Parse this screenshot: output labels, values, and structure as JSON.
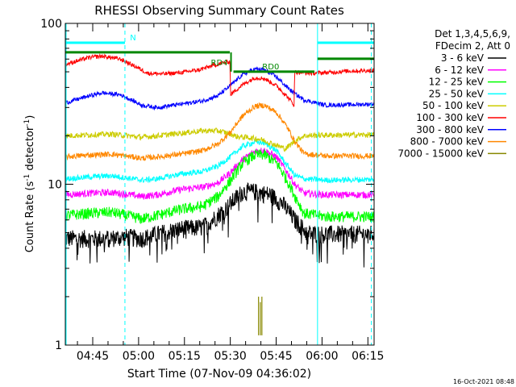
{
  "chart_data": {
    "type": "line",
    "title": "RHESSI Observing Summary Count Rates",
    "xlabel": "Start Time (07-Nov-09 04:36:02)",
    "ylabel_main": "Count Rate (s",
    "ylabel_sup": "-1",
    "ylabel_tail": " detector",
    "ylabel_end": ")",
    "y_scale": "log",
    "ylim": [
      1,
      100
    ],
    "xlim": [
      "04:36:02",
      "06:17:00"
    ],
    "y_ticks": [
      {
        "value": 1,
        "label": "1"
      },
      {
        "value": 10,
        "label": "10"
      },
      {
        "value": 100,
        "label": "100"
      }
    ],
    "x_ticks": [
      {
        "minutes": 8.97,
        "label": "04:45"
      },
      {
        "minutes": 23.97,
        "label": "05:00"
      },
      {
        "minutes": 38.97,
        "label": "05:15"
      },
      {
        "minutes": 53.97,
        "label": "05:30"
      },
      {
        "minutes": 68.97,
        "label": "05:45"
      },
      {
        "minutes": 83.97,
        "label": "06:00"
      },
      {
        "minutes": 98.97,
        "label": "06:15"
      }
    ],
    "legend": {
      "placement": "right",
      "header": [
        "Det 1,3,4,5,6,9,",
        "FDecim 2, Att 0"
      ],
      "entries": [
        {
          "label": "3 - 6 keV",
          "color": "#000000"
        },
        {
          "label": "6 - 12 keV",
          "color": "#ff00ff"
        },
        {
          "label": "12 - 25 keV",
          "color": "#00ff00"
        },
        {
          "label": "25 - 50 keV",
          "color": "#00ffff"
        },
        {
          "label": "50 - 100 keV",
          "color": "#cccc00"
        },
        {
          "label": "100 - 300 keV",
          "color": "#ff0000"
        },
        {
          "label": "300 - 800 keV",
          "color": "#0000ff"
        },
        {
          "label": "800 - 7000 keV",
          "color": "#ff8800"
        },
        {
          "label": "7000 - 15000 keV",
          "color": "#888800"
        }
      ]
    },
    "series": [
      {
        "name": "3 - 6 keV",
        "color": "#000000",
        "noise": 0.13,
        "points": [
          [
            0,
            4.6
          ],
          [
            12,
            4.6
          ],
          [
            20,
            4.7
          ],
          [
            25,
            4.6
          ],
          [
            30,
            4.9
          ],
          [
            38,
            5.3
          ],
          [
            45,
            5.4
          ],
          [
            49,
            6.2
          ],
          [
            53,
            7.2
          ],
          [
            58,
            9.0
          ],
          [
            62,
            9.0
          ],
          [
            67,
            8.6
          ],
          [
            71,
            7.6
          ],
          [
            75,
            6.0
          ],
          [
            79,
            5.0
          ],
          [
            84,
            4.9
          ],
          [
            92,
            4.9
          ],
          [
            101,
            4.9
          ]
        ]
      },
      {
        "name": "6 - 12 keV",
        "color": "#ff00ff",
        "noise": 0.05,
        "points": [
          [
            0,
            8.6
          ],
          [
            8,
            8.8
          ],
          [
            15,
            8.9
          ],
          [
            25,
            8.4
          ],
          [
            30,
            8.6
          ],
          [
            38,
            9.3
          ],
          [
            45,
            9.6
          ],
          [
            50,
            10.2
          ],
          [
            54,
            11.8
          ],
          [
            58,
            14.2
          ],
          [
            62,
            16.0
          ],
          [
            65,
            16.3
          ],
          [
            69,
            14.8
          ],
          [
            72,
            12.3
          ],
          [
            75,
            10.0
          ],
          [
            78,
            8.8
          ],
          [
            85,
            8.6
          ],
          [
            101,
            8.6
          ]
        ]
      },
      {
        "name": "12 - 25 keV",
        "color": "#00ff00",
        "noise": 0.08,
        "points": [
          [
            0,
            6.4
          ],
          [
            8,
            6.6
          ],
          [
            15,
            6.7
          ],
          [
            25,
            6.1
          ],
          [
            30,
            6.4
          ],
          [
            38,
            7.0
          ],
          [
            45,
            7.3
          ],
          [
            50,
            8.4
          ],
          [
            54,
            10.5
          ],
          [
            58,
            13.5
          ],
          [
            62,
            15.2
          ],
          [
            65,
            15.3
          ],
          [
            69,
            13.6
          ],
          [
            72,
            11.0
          ],
          [
            75,
            8.5
          ],
          [
            78,
            6.6
          ],
          [
            85,
            6.3
          ],
          [
            101,
            6.3
          ]
        ]
      },
      {
        "name": "25 - 50 keV",
        "color": "#00ffff",
        "noise": 0.04,
        "points": [
          [
            0,
            10.8
          ],
          [
            8,
            11.1
          ],
          [
            15,
            11.3
          ],
          [
            25,
            10.6
          ],
          [
            30,
            10.8
          ],
          [
            38,
            11.6
          ],
          [
            45,
            12.0
          ],
          [
            50,
            13.0
          ],
          [
            54,
            14.8
          ],
          [
            58,
            17.2
          ],
          [
            62,
            18.3
          ],
          [
            65,
            18.1
          ],
          [
            69,
            16.2
          ],
          [
            72,
            13.5
          ],
          [
            75,
            11.4
          ],
          [
            78,
            10.8
          ],
          [
            85,
            10.6
          ],
          [
            101,
            10.7
          ]
        ]
      },
      {
        "name": "50 - 100 keV",
        "color": "#cccc00",
        "noise": 0.04,
        "points": [
          [
            0,
            20.0
          ],
          [
            8,
            20.3
          ],
          [
            15,
            20.5
          ],
          [
            25,
            19.6
          ],
          [
            30,
            20.0
          ],
          [
            38,
            20.8
          ],
          [
            45,
            21.5
          ],
          [
            50,
            21.5
          ],
          [
            54,
            20.6
          ],
          [
            56,
            19.8
          ],
          [
            60,
            19.5
          ],
          [
            64,
            19.0
          ],
          [
            69,
            17.5
          ],
          [
            72,
            16.6
          ],
          [
            75,
            18.5
          ],
          [
            78,
            20.0
          ],
          [
            85,
            20.2
          ],
          [
            101,
            20.3
          ]
        ]
      },
      {
        "name": "800 - 7000 keV",
        "color": "#ff8800",
        "noise": 0.04,
        "points": [
          [
            0,
            14.8
          ],
          [
            8,
            15.2
          ],
          [
            15,
            15.4
          ],
          [
            25,
            14.5
          ],
          [
            30,
            14.8
          ],
          [
            38,
            15.4
          ],
          [
            45,
            16.2
          ],
          [
            50,
            17.8
          ],
          [
            54,
            21.0
          ],
          [
            58,
            26.5
          ],
          [
            62,
            30.5
          ],
          [
            65,
            31.0
          ],
          [
            69,
            28.0
          ],
          [
            72,
            23.5
          ],
          [
            75,
            18.5
          ],
          [
            78,
            15.5
          ],
          [
            85,
            15.0
          ],
          [
            101,
            15.0
          ]
        ]
      },
      {
        "name": "300 - 800 keV",
        "color": "#0000ff",
        "noise": 0.03,
        "points": [
          [
            0,
            32.0
          ],
          [
            8,
            35.5
          ],
          [
            12,
            37.0
          ],
          [
            18,
            36.0
          ],
          [
            25,
            31.0
          ],
          [
            30,
            30.0
          ],
          [
            38,
            31.5
          ],
          [
            45,
            33.0
          ],
          [
            50,
            35.5
          ],
          [
            54,
            41.0
          ],
          [
            58,
            48.0
          ],
          [
            62,
            52.0
          ],
          [
            65,
            51.5
          ],
          [
            69,
            46.5
          ],
          [
            72,
            41.0
          ],
          [
            75,
            36.5
          ],
          [
            78,
            33.5
          ],
          [
            85,
            31.0
          ],
          [
            101,
            31.5
          ]
        ]
      },
      {
        "name": "100 - 300 keV",
        "color": "#ff0000",
        "noise": 0.03,
        "points": [
          [
            0,
            55.5
          ],
          [
            8,
            61.5
          ],
          [
            12,
            62.5
          ],
          [
            18,
            60.0
          ],
          [
            22,
            55.0
          ],
          [
            27,
            49.0
          ],
          [
            32,
            48.5
          ],
          [
            38,
            49.5
          ],
          [
            44,
            51.5
          ],
          [
            48,
            54.5
          ],
          [
            51,
            56.5
          ],
          [
            53.9,
            58.0
          ],
          [
            54.0,
            36.0
          ],
          [
            58,
            41.5
          ],
          [
            62,
            46.0
          ],
          [
            65,
            45.5
          ],
          [
            69,
            41.0
          ],
          [
            72,
            36.0
          ],
          [
            74.9,
            31.0
          ],
          [
            75.0,
            50.0
          ],
          [
            80,
            49.0
          ],
          [
            86,
            49.5
          ],
          [
            92,
            50.5
          ],
          [
            101,
            51.0
          ]
        ]
      },
      {
        "name": "7000 - 15000 keV",
        "color": "#888800",
        "noise": 0,
        "spikes": [
          [
            63.2,
            1.15,
            2.0
          ],
          [
            63.8,
            1.15,
            1.85
          ],
          [
            64.3,
            1.15,
            2.0
          ]
        ]
      }
    ],
    "states": [
      {
        "label": "N",
        "color": "#00ffff",
        "start": 0,
        "end": 19.5,
        "y_frac": 0.94
      },
      {
        "label": "",
        "color": "#00ffff",
        "start": 82.5,
        "end": 101,
        "y_frac": 0.94
      },
      {
        "label": "",
        "color": "#008800",
        "start": 0,
        "end": 53.8,
        "y_frac": 0.91
      },
      {
        "label": "RD0",
        "color": "#008800",
        "start": 55,
        "end": 81.5,
        "y_frac": 0.85
      },
      {
        "label": "",
        "color": "#008800",
        "start": 82.5,
        "end": 101,
        "y_frac": 0.89
      }
    ],
    "markers": [
      {
        "label": "RD4",
        "color": "#008800",
        "at": 54.2
      },
      {
        "label": "",
        "color": "#00ffff",
        "at": 82.5
      },
      {
        "label": "",
        "color": "#00ffff",
        "at": 100.1
      }
    ],
    "dashed_lines": [
      19.5,
      100.1
    ],
    "attenuator_lines": [
      0,
      82.5
    ],
    "footer": "16-Oct-2021 08:48"
  }
}
